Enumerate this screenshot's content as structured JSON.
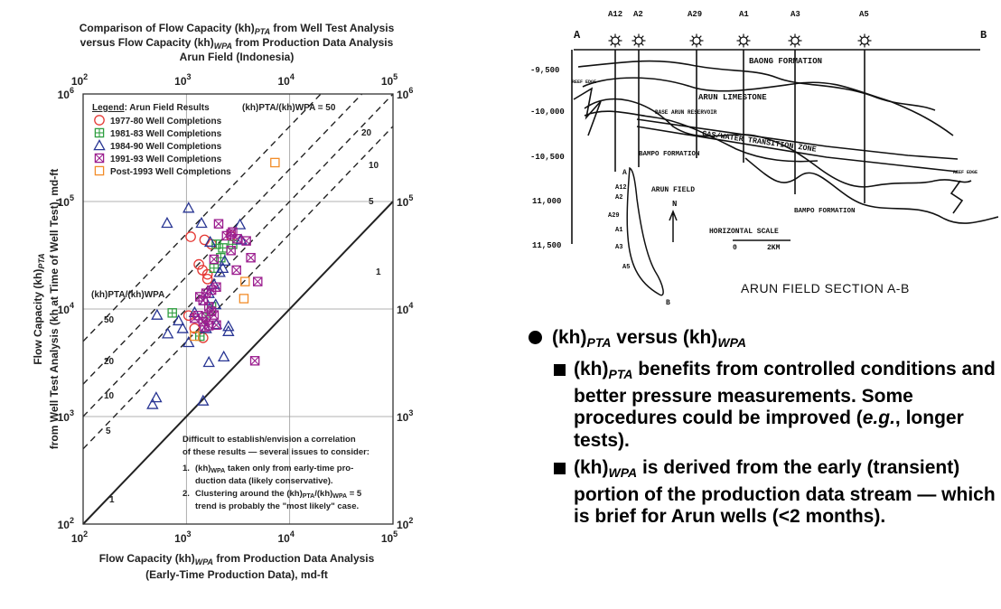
{
  "chart_data": {
    "type": "scatter",
    "title": [
      "Comparison of Flow Capacity (kh)",
      "PTA",
      " from Well Test Analysis"
    ],
    "title_line2": [
      "versus Flow Capacity (kh)",
      "WPA",
      " from Production Data Analysis"
    ],
    "title_line3": "Arun Field (Indonesia)",
    "xlabel_line1": [
      "Flow Capacity (kh)",
      "WPA",
      " from Production Data Analysis"
    ],
    "xlabel_line2": "(Early-Time Production Data), md-ft",
    "ylabel_line1": [
      "Flow Capacity (kh)",
      "PTA"
    ],
    "ylabel_line2": "from Well Test Analysis (kh at Time of Well Test), md-ft",
    "x_scale": "log",
    "y_scale": "log",
    "xlim": [
      100,
      100000
    ],
    "ylim": [
      100,
      1000000
    ],
    "ticks": [
      {
        "base": "10",
        "exp": "2"
      },
      {
        "base": "10",
        "exp": "3"
      },
      {
        "base": "10",
        "exp": "4"
      },
      {
        "base": "10",
        "exp": "5"
      },
      {
        "base": "10",
        "exp": "6"
      }
    ],
    "legend_title": "Legend",
    "legend_title_suffix": ": Arun Field Results",
    "legend_ratio_label": "(kh)PTA/(kh)WPA = 50",
    "ratio_axis_label": "(kh)PTA/(kh)WPA",
    "ratio_lines": [
      {
        "ratio": 50,
        "label": "50"
      },
      {
        "ratio": 20,
        "label": "20"
      },
      {
        "ratio": 10,
        "label": "10"
      },
      {
        "ratio": 5,
        "label": "5"
      },
      {
        "ratio": 1,
        "label": "1"
      }
    ],
    "series": [
      {
        "name": "1977-80 Well Completions",
        "marker": "circle",
        "color": "#e53935",
        "points": [
          [
            1100,
            47000
          ],
          [
            1500,
            44000
          ],
          [
            1320,
            26000
          ],
          [
            1430,
            23000
          ],
          [
            1600,
            21000
          ],
          [
            1050,
            8700
          ],
          [
            1450,
            5400
          ],
          [
            1200,
            6600
          ],
          [
            2700,
            48000
          ],
          [
            1600,
            19000
          ],
          [
            1750,
            40000
          ]
        ]
      },
      {
        "name": "1981-83 Well Completions",
        "marker": "square-plus",
        "color": "#2e9e3f",
        "points": [
          [
            730,
            9200
          ],
          [
            1950,
            40000
          ],
          [
            2250,
            37000
          ],
          [
            2150,
            30000
          ],
          [
            2800,
            40000
          ],
          [
            1850,
            24000
          ],
          [
            1350,
            5600
          ],
          [
            1550,
            8400
          ],
          [
            1750,
            10500
          ]
        ]
      },
      {
        "name": "1984-90 Well Completions",
        "marker": "triangle",
        "color": "#283593",
        "points": [
          [
            650,
            63000
          ],
          [
            1050,
            87000
          ],
          [
            1400,
            63000
          ],
          [
            520,
            8800
          ],
          [
            660,
            5900
          ],
          [
            1050,
            4900
          ],
          [
            1650,
            3200
          ],
          [
            2300,
            3600
          ],
          [
            2550,
            6900
          ],
          [
            2550,
            6200
          ],
          [
            1520,
            12000
          ],
          [
            1850,
            17000
          ],
          [
            1920,
            11000
          ],
          [
            1650,
            14000
          ],
          [
            2250,
            24000
          ],
          [
            2350,
            28000
          ],
          [
            1200,
            9300
          ],
          [
            1550,
            6600
          ],
          [
            840,
            7800
          ],
          [
            920,
            6600
          ],
          [
            1450,
            1400
          ],
          [
            470,
            1300
          ],
          [
            510,
            1500
          ],
          [
            3300,
            61000
          ],
          [
            1700,
            42000
          ],
          [
            3400,
            44000
          ],
          [
            2100,
            22000
          ],
          [
            1950,
            7200
          ]
        ]
      },
      {
        "name": "1991-93 Well Completions",
        "marker": "square-x",
        "color": "#9c1f8f",
        "points": [
          [
            2050,
            62000
          ],
          [
            2450,
            48000
          ],
          [
            2800,
            52000
          ],
          [
            3100,
            45000
          ],
          [
            3800,
            43000
          ],
          [
            2700,
            35000
          ],
          [
            3050,
            23000
          ],
          [
            4900,
            18000
          ],
          [
            4200,
            30000
          ],
          [
            1850,
            29000
          ],
          [
            1950,
            16000
          ],
          [
            1550,
            14000
          ],
          [
            1450,
            12000
          ],
          [
            1650,
            10500
          ],
          [
            1750,
            9500
          ],
          [
            1550,
            8500
          ],
          [
            1850,
            8800
          ],
          [
            1450,
            7600
          ],
          [
            1950,
            7100
          ],
          [
            1650,
            7000
          ],
          [
            1200,
            8200
          ],
          [
            4600,
            3300
          ],
          [
            1300,
            8700
          ],
          [
            1500,
            6800
          ],
          [
            1350,
            13000
          ],
          [
            2700,
            50000
          ],
          [
            1750,
            15000
          ]
        ]
      },
      {
        "name": "Post-1993 Well Completions",
        "marker": "square",
        "color": "#f28c28",
        "points": [
          [
            7200,
            230000
          ],
          [
            3700,
            18000
          ],
          [
            3600,
            12500
          ],
          [
            1200,
            5600
          ]
        ]
      }
    ],
    "annotation_lines": [
      "Difficult to establish/envision a correlation",
      "of these results — several issues to consider:"
    ],
    "annotation_item1_prefix": "1.",
    "annotation_item1_a": [
      "(kh)",
      "WPA",
      " taken only from early-time pro-"
    ],
    "annotation_item1_b": "duction data (likely conservative).",
    "annotation_item2_prefix": "2.",
    "annotation_item2_a": [
      "Clustering around the (kh)",
      "PTA",
      "/(kh)",
      "WPA",
      " = 5"
    ],
    "annotation_item2_b": "trend is probably the \"most likely\" case."
  },
  "cross_section": {
    "title": "ARUN FIELD SECTION A-B",
    "endpoint_left": "A",
    "endpoint_right": "B",
    "wells": [
      "A12",
      "A2",
      "A29",
      "A1",
      "A3",
      "A5"
    ],
    "depth_labels": [
      "-9,500",
      "-10,000",
      "-10,500",
      "11,000",
      "11,500"
    ],
    "formations": [
      "BAONG FORMATION",
      "ARUN LIMESTONE",
      "BASE ARUN RESERVOIR",
      "GAS/WATER TRANSITION ZONE",
      "BAMPO FORMATION",
      "BAMPO FORMATION"
    ],
    "side_labels": [
      "REEF EDGE",
      "REEF EDGE"
    ],
    "map_label": "ARUN FIELD",
    "north_label": "N",
    "scale_label": "HORIZONTAL SCALE",
    "scale_zero": "0",
    "scale_km": "2KM",
    "map_corner_a": "A",
    "map_corner_b": "B",
    "map_wells": [
      "A12",
      "A2",
      "A29",
      "A1",
      "A3",
      "A5"
    ]
  },
  "bullets": {
    "main": {
      "pre": "(kh)",
      "sub1": "PTA",
      "mid": " versus (kh)",
      "sub2": "WPA"
    },
    "item1": {
      "pre": "(kh)",
      "sub": "PTA",
      "text": " benefits from controlled conditions and better pressure measurements.  Some procedures could be improved (",
      "eg": "e.g.",
      "text2": ", longer tests)."
    },
    "item2": {
      "pre": "(kh)",
      "sub": "WPA",
      "text": " is derived from the early (transient) portion of the production data stream — which is brief for Arun wells (<2 months)."
    }
  }
}
